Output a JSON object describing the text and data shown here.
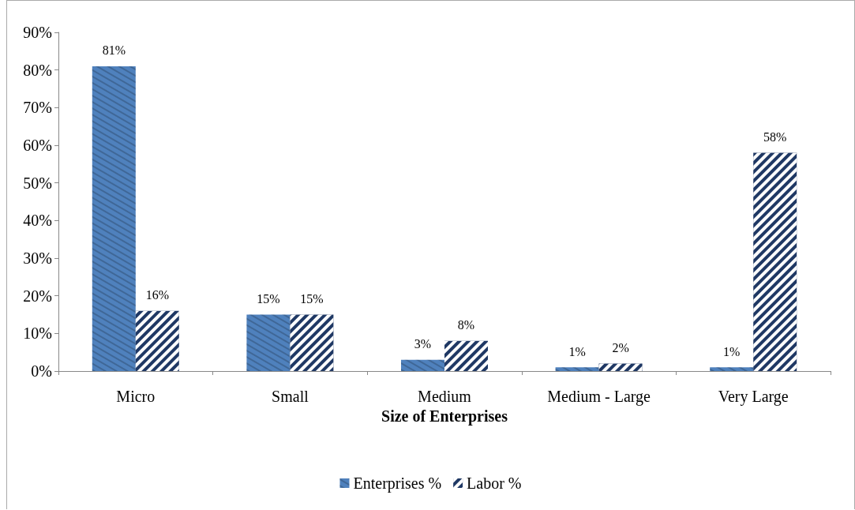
{
  "chart_data": {
    "type": "bar",
    "xlabel": "Size of Enterprises",
    "categories": [
      "Micro",
      "Small",
      "Medium",
      "Medium - Large",
      "Very Large"
    ],
    "series": [
      {
        "name": "Enterprises %",
        "color": "#4f81bd",
        "values": [
          81,
          15,
          3,
          1,
          1
        ],
        "value_labels": [
          "81%",
          "15%",
          "3%",
          "1%",
          "1%"
        ]
      },
      {
        "name": "Labor %",
        "color": "#1f3864",
        "values": [
          16,
          15,
          8,
          2,
          58
        ],
        "value_labels": [
          "16%",
          "15%",
          "8%",
          "2%",
          "58%"
        ]
      }
    ],
    "ylim": [
      0,
      90
    ],
    "yticks": [
      {
        "value": 0,
        "label": "0%"
      },
      {
        "value": 10,
        "label": "10%"
      },
      {
        "value": 20,
        "label": "20%"
      },
      {
        "value": 30,
        "label": "30%"
      },
      {
        "value": 40,
        "label": "40%"
      },
      {
        "value": 50,
        "label": "50%"
      },
      {
        "value": 60,
        "label": "60%"
      },
      {
        "value": 70,
        "label": "70%"
      },
      {
        "value": 80,
        "label": "80%"
      },
      {
        "value": 90,
        "label": "90%"
      }
    ],
    "grid": false,
    "legend": "bottom"
  }
}
